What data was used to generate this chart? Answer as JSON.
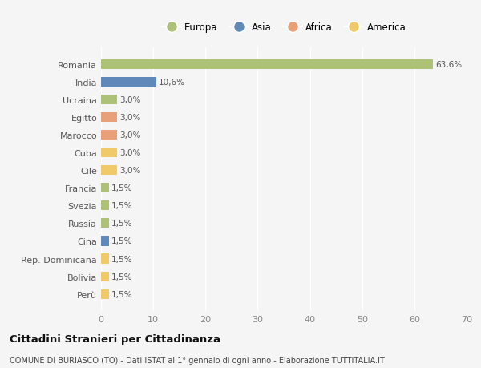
{
  "countries": [
    "Romania",
    "India",
    "Ucraina",
    "Egitto",
    "Marocco",
    "Cuba",
    "Cile",
    "Francia",
    "Svezia",
    "Russia",
    "Cina",
    "Rep. Dominicana",
    "Bolivia",
    "Perù"
  ],
  "values": [
    63.6,
    10.6,
    3.0,
    3.0,
    3.0,
    3.0,
    3.0,
    1.5,
    1.5,
    1.5,
    1.5,
    1.5,
    1.5,
    1.5
  ],
  "labels": [
    "63,6%",
    "10,6%",
    "3,0%",
    "3,0%",
    "3,0%",
    "3,0%",
    "3,0%",
    "1,5%",
    "1,5%",
    "1,5%",
    "1,5%",
    "1,5%",
    "1,5%",
    "1,5%"
  ],
  "colors": [
    "#adc178",
    "#6088b8",
    "#adc178",
    "#e8a07a",
    "#e8a07a",
    "#f0c96a",
    "#f0c96a",
    "#adc178",
    "#adc178",
    "#adc178",
    "#6088b8",
    "#f0c96a",
    "#f0c96a",
    "#f0c96a"
  ],
  "legend": [
    {
      "label": "Europa",
      "color": "#adc178"
    },
    {
      "label": "Asia",
      "color": "#6088b8"
    },
    {
      "label": "Africa",
      "color": "#e8a07a"
    },
    {
      "label": "America",
      "color": "#f0c96a"
    }
  ],
  "xlim": [
    0,
    70
  ],
  "xticks": [
    0,
    10,
    20,
    30,
    40,
    50,
    60,
    70
  ],
  "title": "Cittadini Stranieri per Cittadinanza",
  "subtitle": "COMUNE DI BURIASCO (TO) - Dati ISTAT al 1° gennaio di ogni anno - Elaborazione TUTTITALIA.IT",
  "bg_color": "#f5f5f5",
  "grid_color": "#ffffff",
  "bar_height": 0.55
}
